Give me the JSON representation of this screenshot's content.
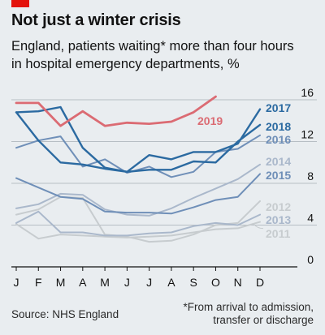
{
  "header": {
    "title": "Not just a winter crisis",
    "subtitle_line1": "England, patients waiting* more than four hours",
    "subtitle_line2": "in hospital emergency departments, %"
  },
  "footer": {
    "source": "Source: NHS England",
    "footnote_line1": "*From arrival to admission,",
    "footnote_line2": "transfer or discharge"
  },
  "colors": {
    "accent": "#e3120b",
    "highlight_2019": "#db6b73",
    "dark_blue": "#2b6aa1",
    "mid_blue": "#6f8fb8",
    "light_blue": "#aab8cb",
    "gray": "#c7cccf",
    "axis": "#121212",
    "gridline": "#b7bec4"
  },
  "chart_data": {
    "type": "line",
    "title": "Not just a winter crisis",
    "subtitle": "England, patients waiting* more than four hours in hospital emergency departments, %",
    "categories": [
      "J",
      "F",
      "M",
      "A",
      "M",
      "J",
      "J",
      "A",
      "S",
      "O",
      "N",
      "D"
    ],
    "ylim": [
      0,
      16
    ],
    "yticks": [
      0,
      4,
      8,
      12,
      16
    ],
    "ytick_labels": [
      "0",
      "4",
      "8",
      "12",
      "16"
    ],
    "y_axis_side": "right",
    "grid": true,
    "legend": "labels at line ends",
    "series": [
      {
        "name": "2011",
        "values": [
          4.1,
          2.7,
          3.1,
          3.0,
          2.9,
          2.8,
          2.9,
          3.0,
          3.3,
          3.6,
          3.7,
          4.3
        ],
        "color_key": "gray",
        "width": 2
      },
      {
        "name": "2012",
        "values": [
          5.0,
          5.5,
          6.7,
          6.6,
          3.1,
          2.9,
          2.4,
          2.5,
          3.1,
          4.0,
          4.2,
          6.3
        ],
        "color_key": "gray",
        "width": 2
      },
      {
        "name": "2013",
        "values": [
          4.2,
          5.3,
          3.3,
          3.3,
          3.0,
          3.0,
          3.2,
          3.3,
          3.9,
          4.2,
          4.0,
          5.0
        ],
        "color_key": "light_blue",
        "width": 2
      },
      {
        "name": "2014",
        "values": [
          5.6,
          6.0,
          7.0,
          6.9,
          5.5,
          5.0,
          4.9,
          5.6,
          6.6,
          7.5,
          8.4,
          9.8
        ],
        "color_key": "light_blue",
        "width": 2
      },
      {
        "name": "2015",
        "values": [
          8.5,
          7.6,
          6.7,
          6.5,
          5.3,
          5.2,
          5.2,
          5.1,
          5.7,
          6.4,
          6.7,
          8.9
        ],
        "color_key": "mid_blue",
        "width": 2
      },
      {
        "name": "2016",
        "values": [
          11.4,
          12.1,
          12.5,
          9.6,
          10.3,
          9.0,
          9.6,
          8.6,
          9.1,
          11.0,
          11.3,
          12.6
        ],
        "color_key": "mid_blue",
        "width": 2
      },
      {
        "name": "2017",
        "values": [
          14.8,
          14.9,
          15.3,
          11.4,
          9.5,
          9.1,
          10.7,
          10.3,
          11.0,
          11.0,
          11.8,
          15.1
        ],
        "color_key": "dark_blue",
        "width": 2.4
      },
      {
        "name": "2018",
        "values": [
          14.8,
          12.1,
          10.0,
          9.8,
          9.4,
          9.1,
          9.3,
          9.3,
          10.1,
          10.0,
          12.0,
          13.6
        ],
        "color_key": "dark_blue",
        "width": 2.4
      },
      {
        "name": "2019",
        "values": [
          15.7,
          15.7,
          13.5,
          14.9,
          13.5,
          13.8,
          13.7,
          13.9,
          14.8,
          16.3,
          null,
          null
        ],
        "color_key": "highlight_2019",
        "width": 2.8
      }
    ]
  }
}
